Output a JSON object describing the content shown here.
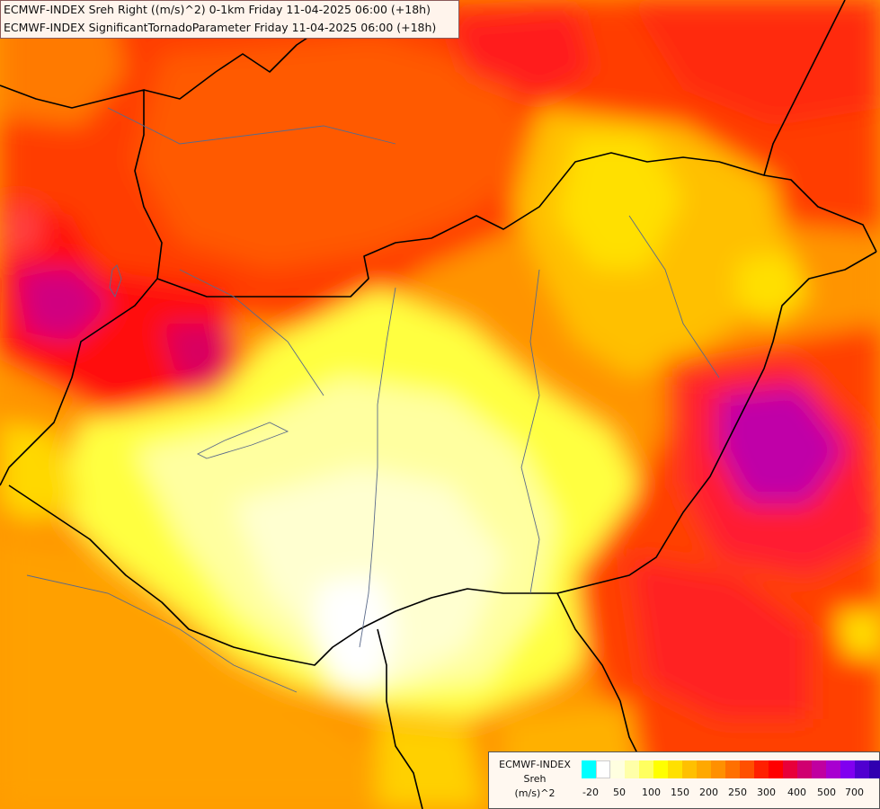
{
  "header": {
    "line1": "ECMWF-INDEX Sreh Right ((m/s)^2) 0-1km Friday 11-04-2025 06:00 (+18h)",
    "line2": "ECMWF-INDEX SignificantTornadoParameter Friday 11-04-2025 06:00 (+18h)"
  },
  "legend": {
    "title": "ECMWF-INDEX",
    "variable": "Sreh",
    "unit": "(m/s)^2",
    "colors": [
      "#00ffff",
      "#ffffff",
      "#ffffe0",
      "#ffffa8",
      "#ffff60",
      "#ffff00",
      "#ffe000",
      "#ffc000",
      "#ffa800",
      "#ff9000",
      "#ff7000",
      "#ff5000",
      "#ff2000",
      "#ff0000",
      "#e8003a",
      "#d00070",
      "#c000a0",
      "#a800d0",
      "#8000f0",
      "#5000d0",
      "#3000b0",
      "#100090"
    ],
    "ticks": [
      "-20",
      "50",
      "100",
      "150",
      "200",
      "250",
      "300",
      "400",
      "500",
      "700"
    ]
  }
}
